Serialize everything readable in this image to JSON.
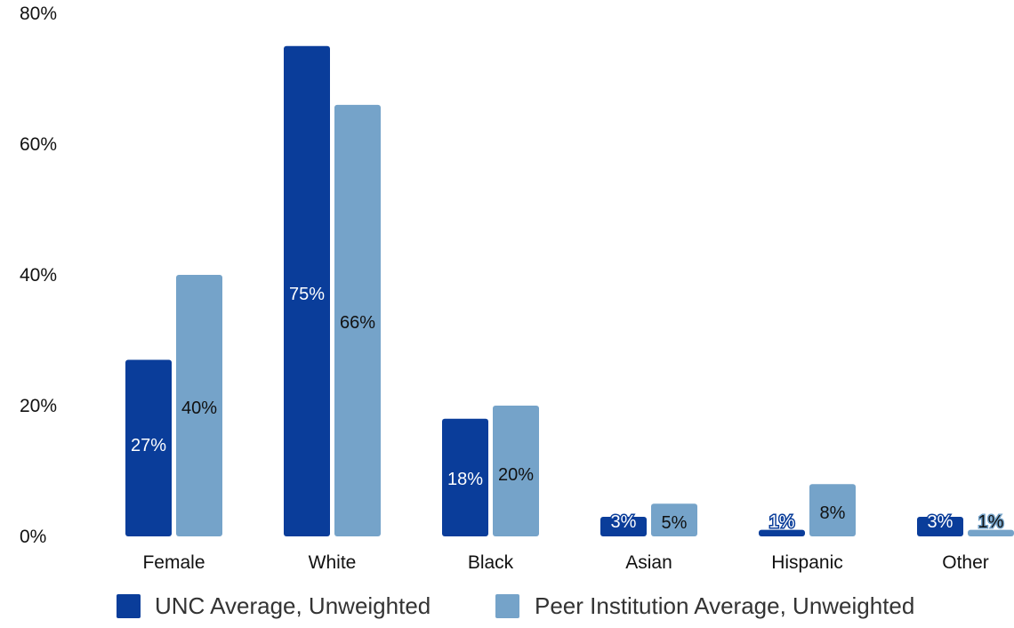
{
  "chart_data": {
    "type": "bar",
    "title": "",
    "xlabel": "",
    "ylabel": "",
    "ylim": [
      0,
      80
    ],
    "yticks": [
      0,
      20,
      40,
      60,
      80
    ],
    "ytick_labels": [
      "0%",
      "20%",
      "40%",
      "60%",
      "80%"
    ],
    "categories": [
      "Female",
      "White",
      "Black",
      "Asian",
      "Hispanic",
      "Other"
    ],
    "series": [
      {
        "name": "UNC Average, Unweighted",
        "color": "#0a3d9a",
        "values": [
          27,
          75,
          18,
          3,
          1,
          3
        ],
        "labels": [
          "27%",
          "75%",
          "18%",
          "3%",
          "1%",
          "3%"
        ]
      },
      {
        "name": "Peer Institution Average, Unweighted",
        "color": "#75a3c9",
        "values": [
          40,
          66,
          20,
          5,
          8,
          1
        ],
        "labels": [
          "40%",
          "66%",
          "20%",
          "5%",
          "8%",
          "1%"
        ]
      }
    ],
    "grid": false,
    "legend_position": "bottom"
  }
}
